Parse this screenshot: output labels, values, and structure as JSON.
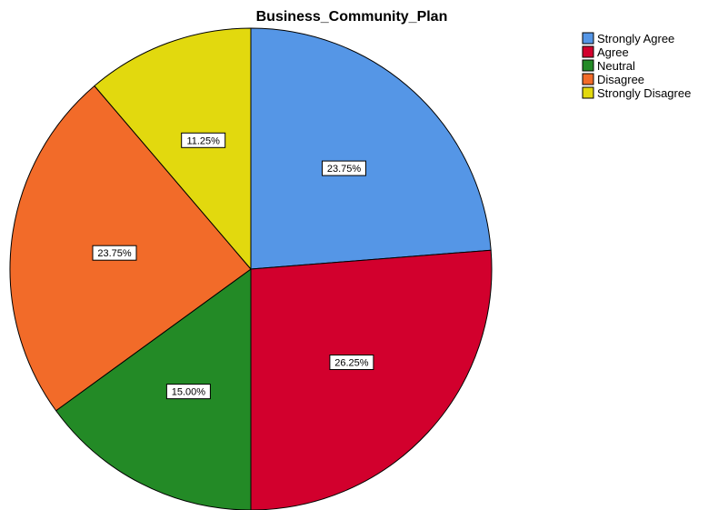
{
  "chart_data": {
    "type": "pie",
    "title": "Business_Community_Plan",
    "legend_position": "top-right",
    "slices": [
      {
        "label": "Strongly Agree",
        "value": 23.75,
        "data_label": "23.75%",
        "color": "#5596E6"
      },
      {
        "label": "Agree",
        "value": 26.25,
        "data_label": "26.25%",
        "color": "#D2002D"
      },
      {
        "label": "Neutral",
        "value": 15.0,
        "data_label": "15.00%",
        "color": "#238A26"
      },
      {
        "label": "Disagree",
        "value": 23.75,
        "data_label": "23.75%",
        "color": "#F26B29"
      },
      {
        "label": "Strongly Disagree",
        "value": 11.25,
        "data_label": "11.25%",
        "color": "#E2D90E"
      }
    ]
  }
}
